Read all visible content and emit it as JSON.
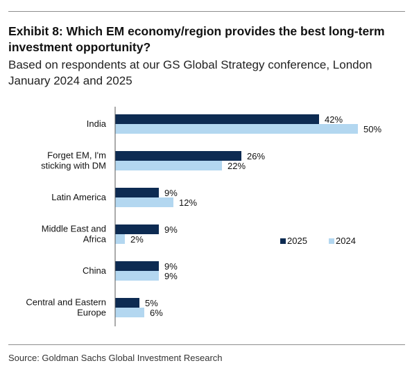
{
  "title": "Exhibit 8: Which EM economy/region provides the best long-term investment opportunity?",
  "subtitle": "Based on respondents at our GS Global Strategy conference, London January 2024 and 2025",
  "source": "Source: Goldman Sachs Global Investment Research",
  "colors": {
    "series_2025": "#0d2b52",
    "series_2024": "#b3d7f0",
    "axis": "#555555"
  },
  "chart_data": {
    "type": "bar",
    "orientation": "horizontal",
    "categories": [
      [
        "India"
      ],
      [
        "Forget EM, I'm",
        "sticking with DM"
      ],
      [
        "Latin America"
      ],
      [
        "Middle East and",
        "Africa"
      ],
      [
        "China"
      ],
      [
        "Central and Eastern",
        "Europe"
      ]
    ],
    "series": [
      {
        "name": "2025",
        "values": [
          42,
          26,
          9,
          9,
          9,
          5
        ],
        "labels": [
          "42%",
          "26%",
          "9%",
          "9%",
          "9%",
          "5%"
        ]
      },
      {
        "name": "2024",
        "values": [
          50,
          22,
          12,
          2,
          9,
          6
        ],
        "labels": [
          "50%",
          "22%",
          "12%",
          "2%",
          "9%",
          "6%"
        ]
      }
    ],
    "xlim": [
      0,
      50
    ],
    "legend": "right",
    "grid": false
  }
}
